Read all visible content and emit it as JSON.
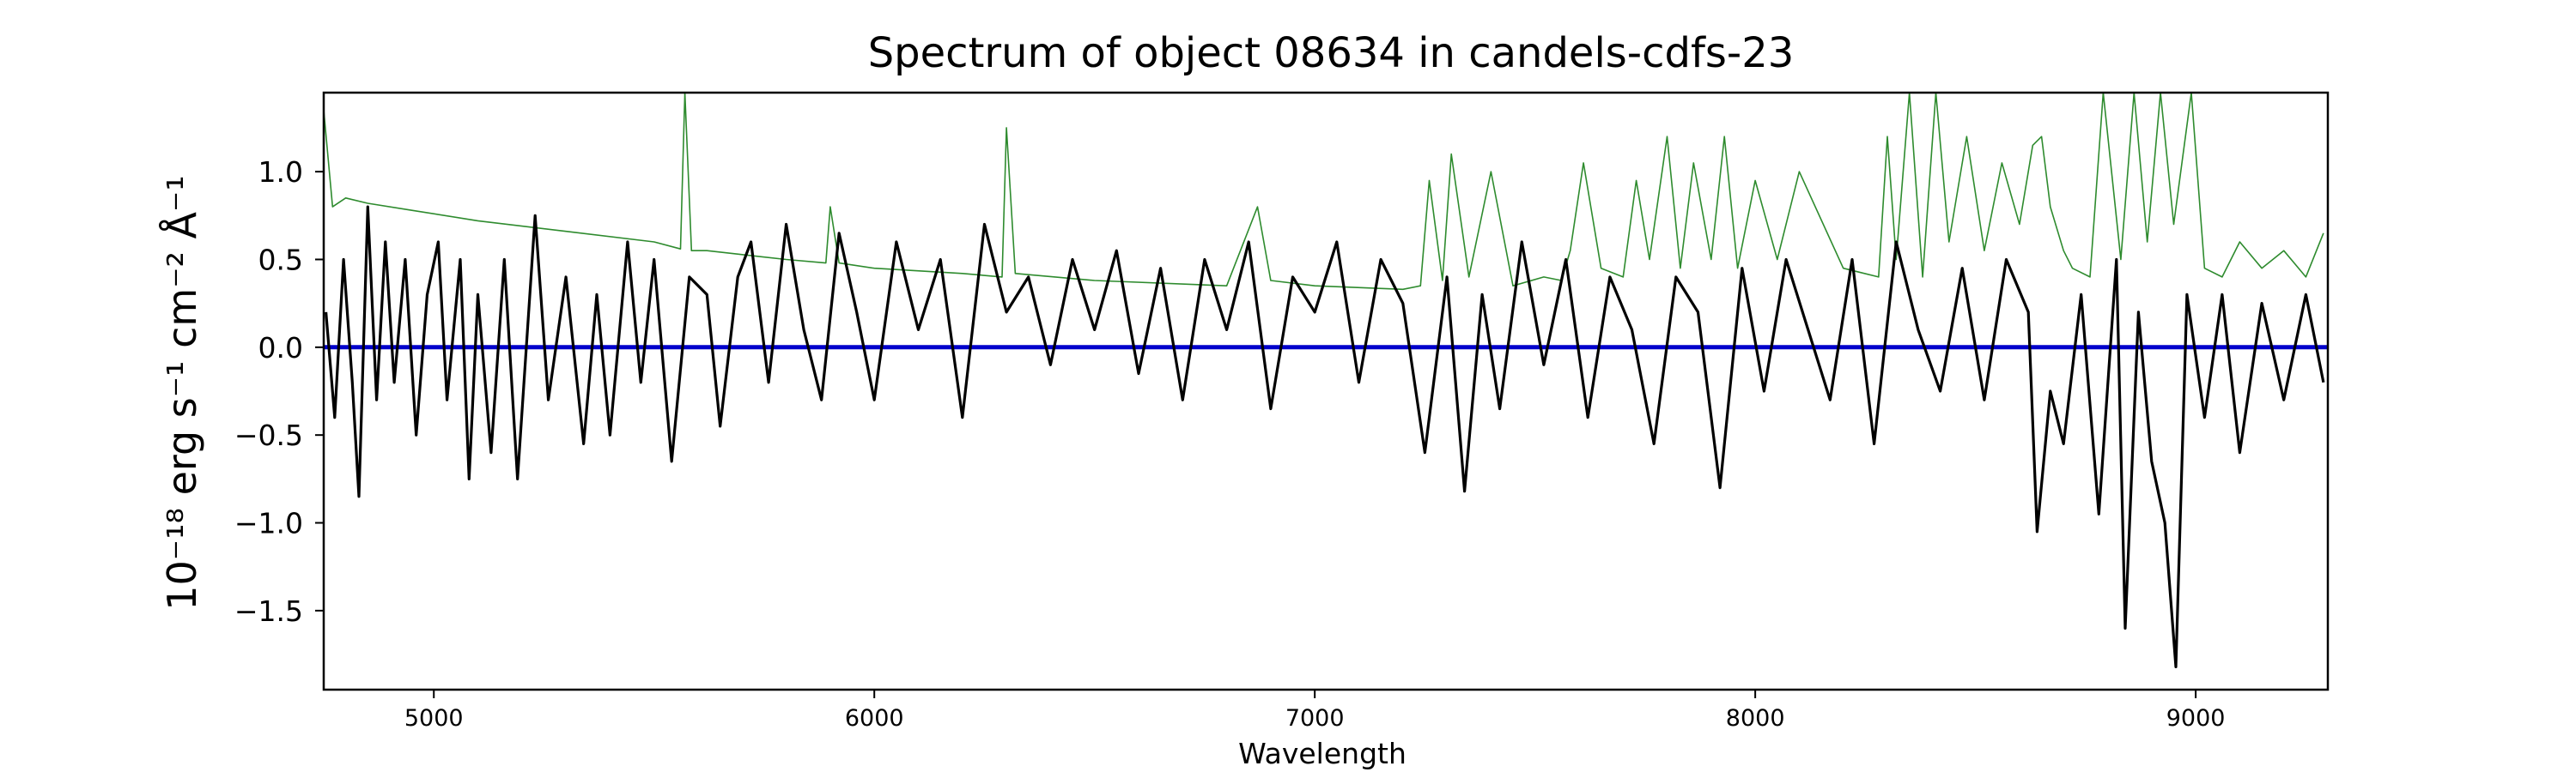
{
  "chart_data": {
    "type": "line",
    "title": "Spectrum of object 08634 in candels-cdfs-23",
    "xlabel": "Wavelength",
    "ylabel": "10⁻¹⁸ erg s⁻¹ cm⁻² Å⁻¹",
    "xlim": [
      4750,
      9300
    ],
    "ylim": [
      -1.95,
      1.45
    ],
    "xticks": [
      5000,
      6000,
      7000,
      8000,
      9000
    ],
    "xtick_labels": [
      "5000",
      "6000",
      "7000",
      "8000",
      "9000"
    ],
    "yticks": [
      -1.5,
      -1.0,
      -0.5,
      0.0,
      0.5,
      1.0
    ],
    "ytick_labels": [
      "−1.5",
      "−1.0",
      "−0.5",
      "0.0",
      "0.5",
      "1.0"
    ],
    "grid": false,
    "colors": {
      "flux": "#000000",
      "error": "#2e8b2e",
      "zero": "#0000cc"
    },
    "series": [
      {
        "style": "black line",
        "x": [
          4755,
          4775,
          4795,
          4815,
          4830,
          4850,
          4870,
          4890,
          4910,
          4935,
          4960,
          4985,
          5010,
          5030,
          5060,
          5080,
          5100,
          5130,
          5160,
          5190,
          5230,
          5260,
          5300,
          5340,
          5370,
          5400,
          5440,
          5470,
          5500,
          5540,
          5580,
          5620,
          5650,
          5690,
          5720,
          5760,
          5800,
          5840,
          5880,
          5920,
          5960,
          6000,
          6050,
          6100,
          6150,
          6200,
          6250,
          6300,
          6350,
          6400,
          6450,
          6500,
          6550,
          6600,
          6650,
          6700,
          6750,
          6800,
          6850,
          6900,
          6950,
          7000,
          7050,
          7100,
          7150,
          7200,
          7250,
          7300,
          7340,
          7380,
          7420,
          7470,
          7520,
          7570,
          7620,
          7670,
          7720,
          7770,
          7820,
          7870,
          7920,
          7970,
          8020,
          8070,
          8120,
          8170,
          8220,
          8270,
          8320,
          8370,
          8420,
          8470,
          8520,
          8570,
          8620,
          8640,
          8670,
          8700,
          8740,
          8780,
          8820,
          8840,
          8870,
          8900,
          8930,
          8955,
          8980,
          9020,
          9060,
          9100,
          9150,
          9200,
          9250,
          9290
        ],
        "y": [
          0.2,
          -0.4,
          0.5,
          -0.2,
          -0.85,
          0.8,
          -0.3,
          0.6,
          -0.2,
          0.5,
          -0.5,
          0.3,
          0.6,
          -0.3,
          0.5,
          -0.75,
          0.3,
          -0.6,
          0.5,
          -0.75,
          0.75,
          -0.3,
          0.4,
          -0.55,
          0.3,
          -0.5,
          0.6,
          -0.2,
          0.5,
          -0.65,
          0.4,
          0.3,
          -0.45,
          0.4,
          0.6,
          -0.2,
          0.7,
          0.1,
          -0.3,
          0.65,
          0.2,
          -0.3,
          0.6,
          0.1,
          0.5,
          -0.4,
          0.7,
          0.2,
          0.4,
          -0.1,
          0.5,
          0.1,
          0.55,
          -0.15,
          0.45,
          -0.3,
          0.5,
          0.1,
          0.6,
          -0.35,
          0.4,
          0.2,
          0.6,
          -0.2,
          0.5,
          0.25,
          -0.6,
          0.4,
          -0.82,
          0.3,
          -0.35,
          0.6,
          -0.1,
          0.5,
          -0.4,
          0.4,
          0.1,
          -0.55,
          0.4,
          0.2,
          -0.8,
          0.45,
          -0.25,
          0.5,
          0.1,
          -0.3,
          0.5,
          -0.55,
          0.6,
          0.1,
          -0.25,
          0.45,
          -0.3,
          0.5,
          0.2,
          -1.05,
          -0.25,
          -0.55,
          0.3,
          -0.95,
          0.5,
          -1.6,
          0.2,
          -0.65,
          -1.0,
          -1.82,
          0.3,
          -0.4,
          0.3,
          -0.6,
          0.25,
          -0.3,
          0.3,
          -0.2
        ]
      },
      {
        "style": "green thin line",
        "x": [
          4750,
          4770,
          4800,
          4850,
          4950,
          5100,
          5300,
          5500,
          5560,
          5570,
          5585,
          5620,
          5800,
          5890,
          5900,
          5920,
          6000,
          6200,
          6290,
          6300,
          6320,
          6500,
          6800,
          6870,
          6900,
          7000,
          7200,
          7240,
          7260,
          7290,
          7310,
          7350,
          7400,
          7450,
          7520,
          7560,
          7580,
          7610,
          7650,
          7700,
          7730,
          7760,
          7800,
          7830,
          7860,
          7900,
          7930,
          7960,
          8000,
          8050,
          8100,
          8200,
          8280,
          8300,
          8320,
          8350,
          8380,
          8410,
          8440,
          8480,
          8520,
          8560,
          8600,
          8630,
          8650,
          8670,
          8700,
          8720,
          8760,
          8790,
          8830,
          8860,
          8890,
          8920,
          8950,
          8990,
          9020,
          9060,
          9100,
          9150,
          9200,
          9250,
          9290
        ],
        "y": [
          1.35,
          0.8,
          0.85,
          0.82,
          0.78,
          0.72,
          0.66,
          0.6,
          0.56,
          1.45,
          0.55,
          0.55,
          0.5,
          0.48,
          0.8,
          0.48,
          0.45,
          0.42,
          0.4,
          1.25,
          0.42,
          0.38,
          0.35,
          0.8,
          0.38,
          0.35,
          0.33,
          0.35,
          0.95,
          0.38,
          1.1,
          0.4,
          1.0,
          0.35,
          0.4,
          0.38,
          0.55,
          1.05,
          0.45,
          0.4,
          0.95,
          0.5,
          1.2,
          0.45,
          1.05,
          0.5,
          1.2,
          0.45,
          0.95,
          0.5,
          1.0,
          0.45,
          0.4,
          1.2,
          0.5,
          1.45,
          0.4,
          1.45,
          0.6,
          1.2,
          0.55,
          1.05,
          0.7,
          1.15,
          1.2,
          0.8,
          0.55,
          0.45,
          0.4,
          1.45,
          0.5,
          1.45,
          0.6,
          1.45,
          0.7,
          1.45,
          0.45,
          0.4,
          0.6,
          0.45,
          0.55,
          0.4,
          0.65
        ]
      },
      {
        "style": "blue line",
        "x": [
          4750,
          9300
        ],
        "y": [
          0.0,
          0.0
        ]
      }
    ]
  }
}
